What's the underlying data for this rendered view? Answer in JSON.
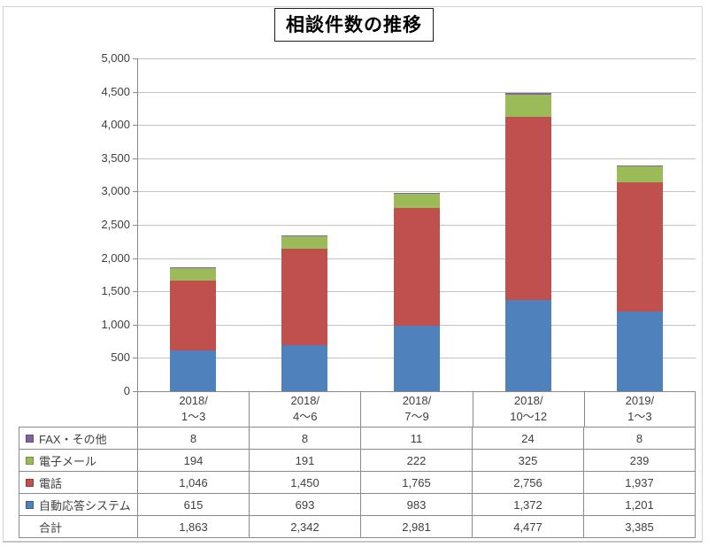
{
  "title": "相談件数の推移",
  "colors": {
    "blue": "#4F81BD",
    "red": "#C0504D",
    "green": "#9BBB59",
    "purple": "#8064A2",
    "gridline": "#C3C3C3",
    "axis": "#8A8A8A",
    "text": "#3F3F3F"
  },
  "chart_data": {
    "type": "bar",
    "stacked": true,
    "title": "相談件数の推移",
    "xlabel": "",
    "ylabel": "",
    "ylim": [
      0,
      5000
    ],
    "ytick_step": 500,
    "ytick_labels": [
      "5,000",
      "4,500",
      "4,000",
      "3,500",
      "3,000",
      "2,500",
      "2,000",
      "1,500",
      "1,000",
      "500",
      "0"
    ],
    "grid": true,
    "legend_position": "table-left",
    "categories": [
      "2018/1～3",
      "2018/4～6",
      "2018/7～9",
      "2018/10～12",
      "2019/1～3"
    ],
    "category_lines": [
      [
        "2018/",
        "1～3"
      ],
      [
        "2018/",
        "4～6"
      ],
      [
        "2018/",
        "7～9"
      ],
      [
        "2018/",
        "10～12"
      ],
      [
        "2019/",
        "1～3"
      ]
    ],
    "series": [
      {
        "name": "自動応答システム",
        "color": "#4F81BD",
        "values": [
          615,
          693,
          983,
          1372,
          1201
        ]
      },
      {
        "name": "電話",
        "color": "#C0504D",
        "values": [
          1046,
          1450,
          1765,
          2756,
          1937
        ]
      },
      {
        "name": "電子メール",
        "color": "#9BBB59",
        "values": [
          194,
          191,
          222,
          325,
          239
        ]
      },
      {
        "name": "FAX・その他",
        "color": "#8064A2",
        "values": [
          8,
          8,
          11,
          24,
          8
        ]
      }
    ],
    "totals": {
      "name": "合計",
      "values": [
        1863,
        2342,
        2981,
        4477,
        3385
      ]
    }
  },
  "table": {
    "rows": [
      {
        "label": "FAX・その他",
        "marker_color": "#8064A2",
        "cells": [
          "8",
          "8",
          "11",
          "24",
          "8"
        ]
      },
      {
        "label": "電子メール",
        "marker_color": "#9BBB59",
        "cells": [
          "194",
          "191",
          "222",
          "325",
          "239"
        ]
      },
      {
        "label": "電話",
        "marker_color": "#C0504D",
        "cells": [
          "1,046",
          "1,450",
          "1,765",
          "2,756",
          "1,937"
        ]
      },
      {
        "label": "自動応答システム",
        "marker_color": "#4F81BD",
        "cells": [
          "615",
          "693",
          "983",
          "1,372",
          "1,201"
        ]
      },
      {
        "label": "合計",
        "marker_color": null,
        "cells": [
          "1,863",
          "2,342",
          "2,981",
          "4,477",
          "3,385"
        ]
      }
    ]
  }
}
